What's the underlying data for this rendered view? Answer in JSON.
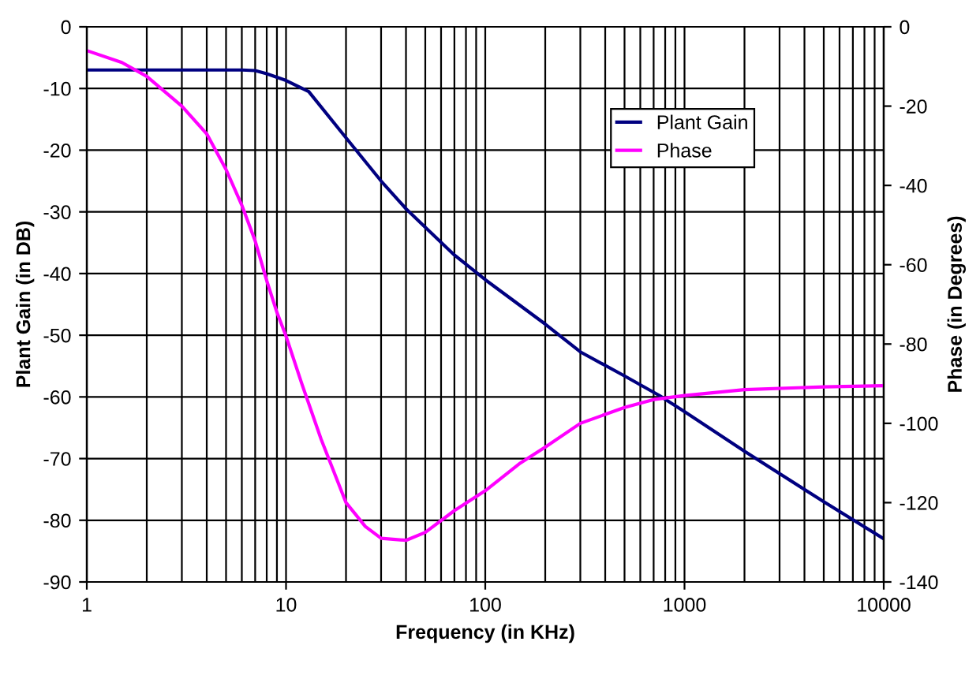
{
  "chart_data": {
    "type": "line",
    "xlabel": "Frequency (in KHz)",
    "ylabel": "Plant Gain (in DB)",
    "y2label": "Phase (in Degrees)",
    "log": "x",
    "xlim": [
      1,
      10000
    ],
    "xticks": [
      1,
      10,
      100,
      1000,
      10000
    ],
    "ylim": [
      -90,
      0
    ],
    "yticks": [
      -90,
      -80,
      -70,
      -60,
      -50,
      -40,
      -30,
      -20,
      -10,
      0
    ],
    "y2lim": [
      -140,
      0
    ],
    "y2ticks": [
      -140,
      -120,
      -100,
      -80,
      -60,
      -40,
      -20,
      0
    ],
    "grid": true,
    "legend": "top right",
    "series": [
      {
        "name": "Plant Gain",
        "color": "#000080",
        "x": [
          1,
          2,
          4,
          6,
          7,
          8,
          10,
          13,
          20,
          30,
          40,
          50,
          70,
          100,
          200,
          300,
          500,
          750,
          1000,
          2000,
          5000,
          10000
        ],
        "values": [
          -7,
          -7,
          -7,
          -7,
          -7.1,
          -7.6,
          -8.7,
          -10.5,
          -18,
          -25,
          -29.5,
          -32.5,
          -37,
          -41,
          -48.2,
          -52.7,
          -56.6,
          -59.8,
          -62.4,
          -68.8,
          -77,
          -83
        ]
      },
      {
        "name": "Phase",
        "color": "#ff00ff",
        "axis": "y2",
        "x": [
          1,
          1.5,
          2,
          3,
          4,
          5,
          6,
          7,
          8,
          9,
          10,
          12,
          15,
          20,
          25,
          30,
          40,
          50,
          70,
          100,
          150,
          200,
          300,
          500,
          700,
          1000,
          2000,
          5000,
          10000
        ],
        "values": [
          -6,
          -9,
          -12.5,
          -20,
          -27,
          -36,
          -45,
          -54,
          -64,
          -72,
          -78,
          -90,
          -104,
          -120,
          -126,
          -129,
          -129.5,
          -127.5,
          -122,
          -117,
          -110,
          -106,
          -100,
          -96,
          -94,
          -93,
          -91.5,
          -90.8,
          -90.5
        ]
      }
    ]
  }
}
